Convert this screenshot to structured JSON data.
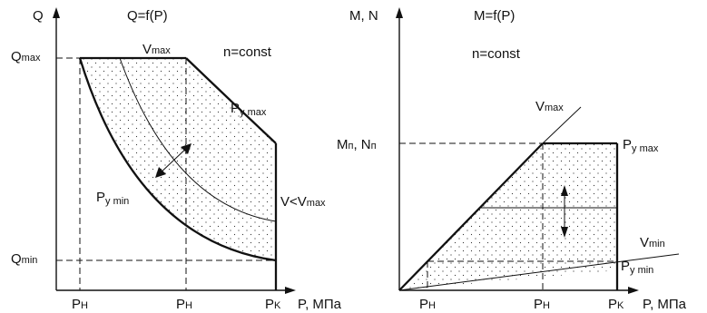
{
  "left_panel": {
    "y_axis_label": "Q",
    "formula": "Q=f(P)",
    "condition": "n=const",
    "q_max_label": {
      "main": "Q",
      "sub": "max"
    },
    "q_min_label": {
      "main": "Q",
      "sub": "min"
    },
    "v_max_label": {
      "main": "V",
      "sub": "max"
    },
    "p_y_max_label": {
      "main": "P",
      "sub": "y max"
    },
    "p_y_min_label": {
      "main": "P",
      "sub": "y min"
    },
    "v_less_label": {
      "main": "V<V",
      "sub": "max"
    },
    "x_ticks": [
      {
        "main": "P",
        "sub": "H"
      },
      {
        "main": "P",
        "sub": "H"
      },
      {
        "main": "P",
        "sub": "K"
      }
    ],
    "x_axis_label": "P, МПа"
  },
  "right_panel": {
    "y_axis_label": "M, N",
    "formula": "M=f(P)",
    "condition": "n=const",
    "m_label": {
      "main": "M",
      "sub": "п"
    },
    "n_label": {
      "main": ", N",
      "sub": "п"
    },
    "v_max_label": {
      "main": "V",
      "sub": "max"
    },
    "v_min_label": {
      "main": "V",
      "sub": "min"
    },
    "p_y_max_label": {
      "main": "P",
      "sub": "y max"
    },
    "p_y_min_label": {
      "main": "P",
      "sub": "y min"
    },
    "x_ticks": [
      {
        "main": "P",
        "sub": "H"
      },
      {
        "main": "P",
        "sub": "H"
      },
      {
        "main": "P",
        "sub": "K"
      }
    ],
    "x_axis_label": "P, МПа"
  }
}
